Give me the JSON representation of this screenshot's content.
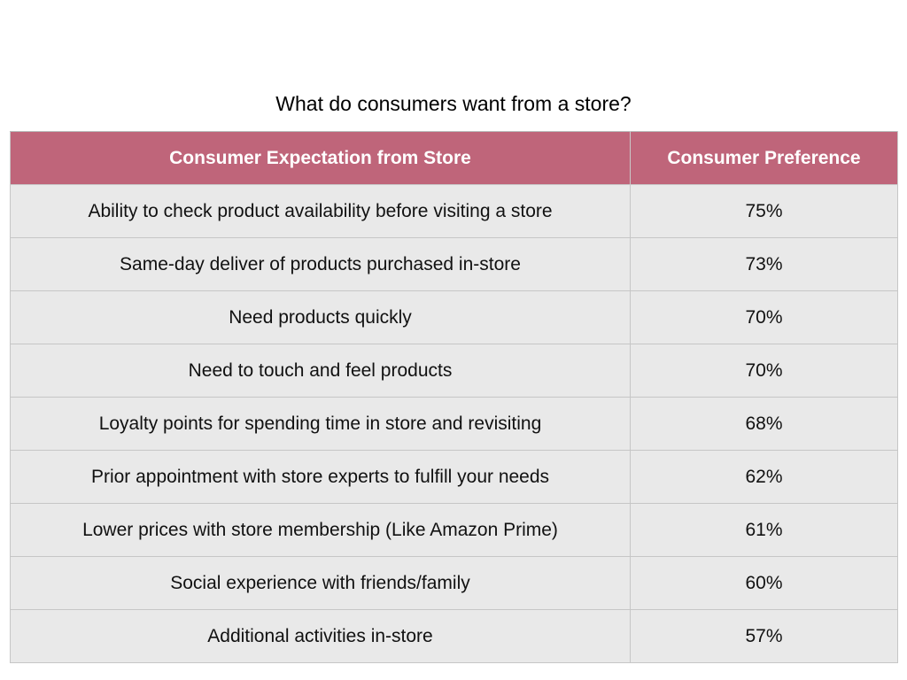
{
  "title": "What do consumers want from a store?",
  "colors": {
    "header_bg": "#bf657a",
    "row_bg": "#e9e9e9"
  },
  "chart_data": {
    "type": "table",
    "columns": [
      "Consumer Expectation from Store",
      "Consumer Preference"
    ],
    "rows": [
      [
        "Ability to check product availability before visiting a store",
        "75%"
      ],
      [
        "Same-day deliver of products purchased in-store",
        "73%"
      ],
      [
        "Need products quickly",
        "70%"
      ],
      [
        "Need to touch and feel products",
        "70%"
      ],
      [
        "Loyalty points for spending time in store and revisiting",
        "68%"
      ],
      [
        "Prior appointment with store experts to fulfill your needs",
        "62%"
      ],
      [
        "Lower prices with store membership (Like Amazon Prime)",
        "61%"
      ],
      [
        "Social experience with friends/family",
        "60%"
      ],
      [
        "Additional activities in-store",
        "57%"
      ]
    ]
  }
}
